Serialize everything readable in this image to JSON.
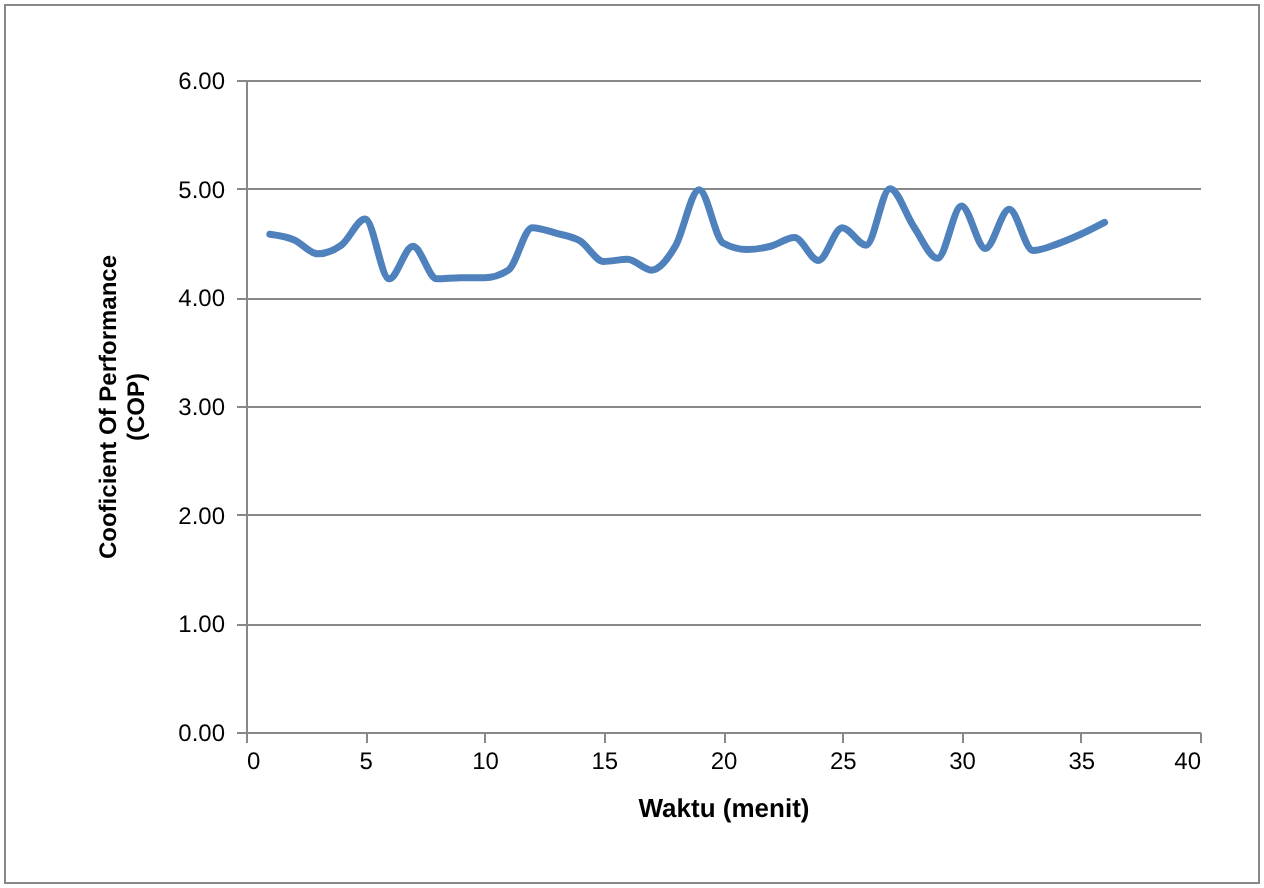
{
  "chart_data": {
    "type": "line",
    "xlabel": "Waktu (menit)",
    "ylabel": "Cooficient Of Performance\n(COP)",
    "x": [
      1,
      2,
      3,
      4,
      5,
      6,
      7,
      8,
      9,
      10,
      11,
      12,
      13,
      14,
      15,
      16,
      17,
      18,
      19,
      20,
      21,
      22,
      23,
      24,
      25,
      26,
      27,
      28,
      29,
      30,
      31,
      32,
      33,
      34,
      35,
      36
    ],
    "series": [
      {
        "color": "#4f81bd",
        "values": [
          4.58,
          4.53,
          4.4,
          4.48,
          4.72,
          4.17,
          4.47,
          4.17,
          4.18,
          4.18,
          4.25,
          4.64,
          4.59,
          4.52,
          4.33,
          4.35,
          4.25,
          4.47,
          4.99,
          4.5,
          4.44,
          4.47,
          4.55,
          4.34,
          4.64,
          4.48,
          5.0,
          4.65,
          4.36,
          4.84,
          4.45,
          4.81,
          4.43,
          4.49,
          4.58,
          4.69
        ]
      }
    ],
    "xlim": [
      0,
      40
    ],
    "xticks": [
      0,
      5,
      10,
      15,
      20,
      25,
      30,
      35,
      40
    ],
    "ylim": [
      0,
      6
    ],
    "yticks": [
      {
        "value": 0,
        "label": "0.00"
      },
      {
        "value": 1,
        "label": "1.00"
      },
      {
        "value": 2,
        "label": "2.00"
      },
      {
        "value": 3,
        "label": "3.00"
      },
      {
        "value": 4,
        "label": "4.00"
      },
      {
        "value": 5,
        "label": "5.00"
      },
      {
        "value": 6,
        "label": "6.00"
      }
    ],
    "grid": "y",
    "line_style": "solid",
    "marker": "none"
  }
}
